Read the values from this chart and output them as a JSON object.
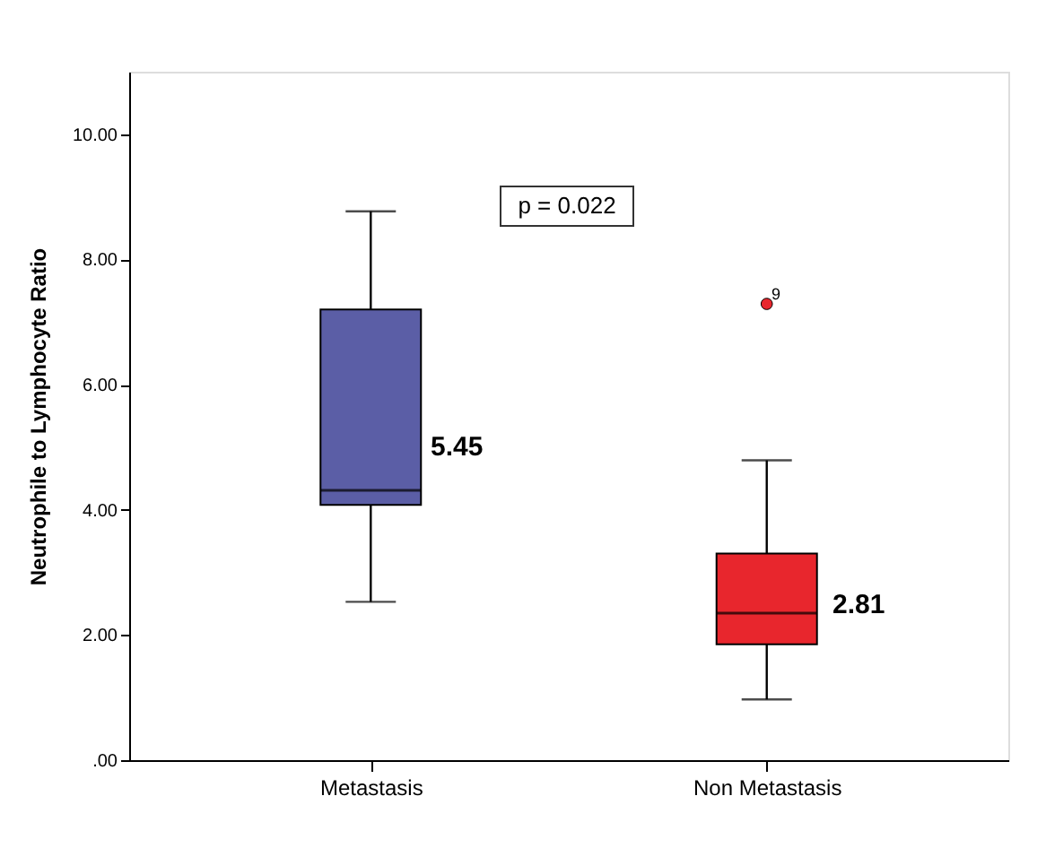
{
  "chart_data": {
    "type": "box",
    "ylabel": "Neutrophile to Lymphocyte Ratio",
    "categories": [
      "Metastasis",
      "Non Metastasis"
    ],
    "boxes": [
      {
        "low": 2.53,
        "q1": 4.08,
        "median": 4.31,
        "q3": 7.2,
        "high": 8.77
      },
      {
        "low": 0.97,
        "q1": 1.85,
        "median": 2.35,
        "q3": 3.3,
        "high": 4.79,
        "outliers": [
          7.29
        ]
      }
    ],
    "colors": [
      "#5b5ea6",
      "#e8262d"
    ],
    "ylim": [
      0,
      11
    ],
    "yticks": [
      {
        "value": 0,
        "label": ".00"
      },
      {
        "value": 2,
        "label": "2.00"
      },
      {
        "value": 4,
        "label": "4.00"
      },
      {
        "value": 6,
        "label": "6.00"
      },
      {
        "value": 8,
        "label": "8.00"
      },
      {
        "value": 10,
        "label": "10.00"
      }
    ],
    "annotations": [
      "p = 0.022",
      "5.45",
      "2.81",
      "9"
    ]
  }
}
